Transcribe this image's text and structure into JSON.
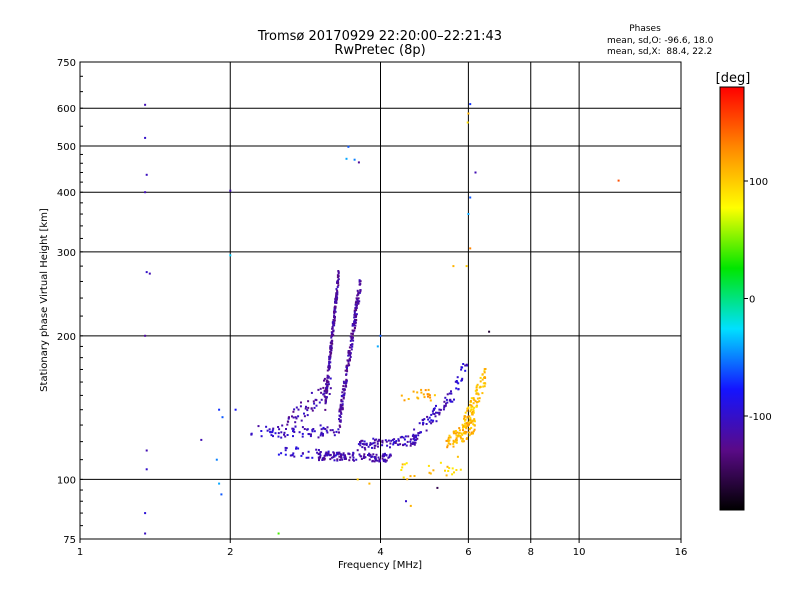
{
  "chart_data": {
    "type": "scatter",
    "title": "Tromsø 20170929 22:20:00–22:21:43",
    "subtitle": "RwPretec (8p)",
    "xlabel": "Frequency [MHz]",
    "ylabel": "Stationary phase Virtual Height [km]",
    "x_scale": "log",
    "y_scale": "log",
    "xlim": [
      1,
      16
    ],
    "ylim": [
      75,
      750
    ],
    "x_ticks": [
      1,
      2,
      4,
      6,
      8,
      10,
      16
    ],
    "y_ticks": [
      75,
      100,
      200,
      300,
      400,
      500,
      600,
      750
    ],
    "grid": true,
    "phase_stats": {
      "heading": "Phases",
      "line_o": "mean, sd,O: -96.6, 18.0",
      "line_x": "mean, sd,X:  88.4, 22.2"
    },
    "colorbar": {
      "label": "[deg]",
      "range": [
        -180,
        180
      ],
      "ticks": [
        100,
        0,
        -100
      ],
      "colormap": [
        "#000000",
        "#5a0a88",
        "#1414ff",
        "#00e0ff",
        "#00e600",
        "#ffff00",
        "#ff8800",
        "#ff0000"
      ]
    },
    "series": [
      {
        "points": [
          {
            "x": 1.35,
            "y": 610,
            "phase": -110
          },
          {
            "x": 1.35,
            "y": 520,
            "phase": -100
          },
          {
            "x": 1.36,
            "y": 435,
            "phase": -105
          },
          {
            "x": 1.35,
            "y": 400,
            "phase": -110
          },
          {
            "x": 1.36,
            "y": 272,
            "phase": -100
          },
          {
            "x": 1.38,
            "y": 270,
            "phase": -110
          },
          {
            "x": 1.35,
            "y": 200,
            "phase": -120
          },
          {
            "x": 1.36,
            "y": 115,
            "phase": -110
          },
          {
            "x": 1.36,
            "y": 105,
            "phase": -100
          },
          {
            "x": 1.35,
            "y": 85,
            "phase": -95
          },
          {
            "x": 1.35,
            "y": 77,
            "phase": -105
          },
          {
            "x": 2.0,
            "y": 403,
            "phase": -110
          },
          {
            "x": 2.0,
            "y": 295,
            "phase": -30
          },
          {
            "x": 1.9,
            "y": 98,
            "phase": -40
          },
          {
            "x": 1.92,
            "y": 93,
            "phase": -60
          },
          {
            "x": 1.88,
            "y": 110,
            "phase": -50
          },
          {
            "x": 1.75,
            "y": 121,
            "phase": -110
          },
          {
            "x": 1.9,
            "y": 140,
            "phase": -70
          },
          {
            "x": 1.93,
            "y": 135,
            "phase": -60
          },
          {
            "x": 2.05,
            "y": 140,
            "phase": -80
          },
          {
            "x": 2.5,
            "y": 77,
            "phase": 40
          },
          {
            "x": 3.45,
            "y": 498,
            "phase": -60
          },
          {
            "x": 3.42,
            "y": 470,
            "phase": -40
          },
          {
            "x": 3.55,
            "y": 468,
            "phase": -50
          },
          {
            "x": 3.62,
            "y": 462,
            "phase": -120
          },
          {
            "x": 6.05,
            "y": 612,
            "phase": -70
          },
          {
            "x": 6.0,
            "y": 585,
            "phase": 110
          },
          {
            "x": 5.98,
            "y": 560,
            "phase": 90
          },
          {
            "x": 6.2,
            "y": 440,
            "phase": -110
          },
          {
            "x": 6.05,
            "y": 390,
            "phase": -60
          },
          {
            "x": 6.0,
            "y": 360,
            "phase": -40
          },
          {
            "x": 6.05,
            "y": 305,
            "phase": 130
          },
          {
            "x": 5.6,
            "y": 280,
            "phase": 110
          },
          {
            "x": 5.95,
            "y": 280,
            "phase": 100
          },
          {
            "x": 6.6,
            "y": 204,
            "phase": -160
          },
          {
            "x": 4.0,
            "y": 200,
            "phase": -60
          },
          {
            "x": 3.95,
            "y": 190,
            "phase": -40
          },
          {
            "x": 3.6,
            "y": 100,
            "phase": 100
          },
          {
            "x": 3.8,
            "y": 98,
            "phase": 110
          },
          {
            "x": 4.5,
            "y": 90,
            "phase": -100
          },
          {
            "x": 4.6,
            "y": 88,
            "phase": 110
          },
          {
            "x": 5.2,
            "y": 96,
            "phase": -150
          },
          {
            "x": 12.0,
            "y": 423,
            "phase": 150
          }
        ],
        "generated_traces": [
          {
            "x_start": 2.2,
            "x_end": 3.3,
            "y_start": 126,
            "y_end": 126,
            "n": 70,
            "phase": -105,
            "jitter": 0.03
          },
          {
            "x_start": 2.5,
            "x_end": 3.3,
            "y_start": 115,
            "y_end": 112,
            "n": 45,
            "phase": -100,
            "jitter": 0.025
          },
          {
            "x_start": 3.0,
            "x_end": 4.2,
            "y_start": 112,
            "y_end": 111,
            "n": 120,
            "phase": -115,
            "jitter": 0.02
          },
          {
            "x_start": 3.6,
            "x_end": 4.8,
            "y_start": 118,
            "y_end": 121,
            "n": 80,
            "phase": -108,
            "jitter": 0.025
          },
          {
            "x_start": 4.6,
            "x_end": 5.6,
            "y_start": 121,
            "y_end": 150,
            "n": 70,
            "phase": -105,
            "jitter": 0.04
          },
          {
            "x_start": 2.6,
            "x_end": 3.2,
            "y_start": 130,
            "y_end": 160,
            "n": 60,
            "phase": -115,
            "jitter": 0.05
          },
          {
            "x_start": 3.1,
            "x_end": 3.3,
            "y_start": 145,
            "y_end": 270,
            "n": 180,
            "phase": -120,
            "jitter": 0.04
          },
          {
            "x_start": 3.3,
            "x_end": 3.65,
            "y_start": 130,
            "y_end": 260,
            "n": 180,
            "phase": -118,
            "jitter": 0.05
          },
          {
            "x_start": 5.4,
            "x_end": 6.2,
            "y_start": 118,
            "y_end": 130,
            "n": 90,
            "phase": 110,
            "jitter": 0.04
          },
          {
            "x_start": 5.8,
            "x_end": 6.5,
            "y_start": 125,
            "y_end": 165,
            "n": 90,
            "phase": 105,
            "jitter": 0.05
          },
          {
            "x_start": 4.4,
            "x_end": 5.2,
            "y_start": 150,
            "y_end": 150,
            "n": 20,
            "phase": 115,
            "jitter": 0.03
          },
          {
            "x_start": 4.4,
            "x_end": 5.8,
            "y_start": 103,
            "y_end": 108,
            "n": 25,
            "phase": 100,
            "jitter": 0.05
          },
          {
            "x_start": 5.6,
            "x_end": 6.0,
            "y_start": 150,
            "y_end": 180,
            "n": 20,
            "phase": -100,
            "jitter": 0.04
          }
        ]
      }
    ]
  }
}
